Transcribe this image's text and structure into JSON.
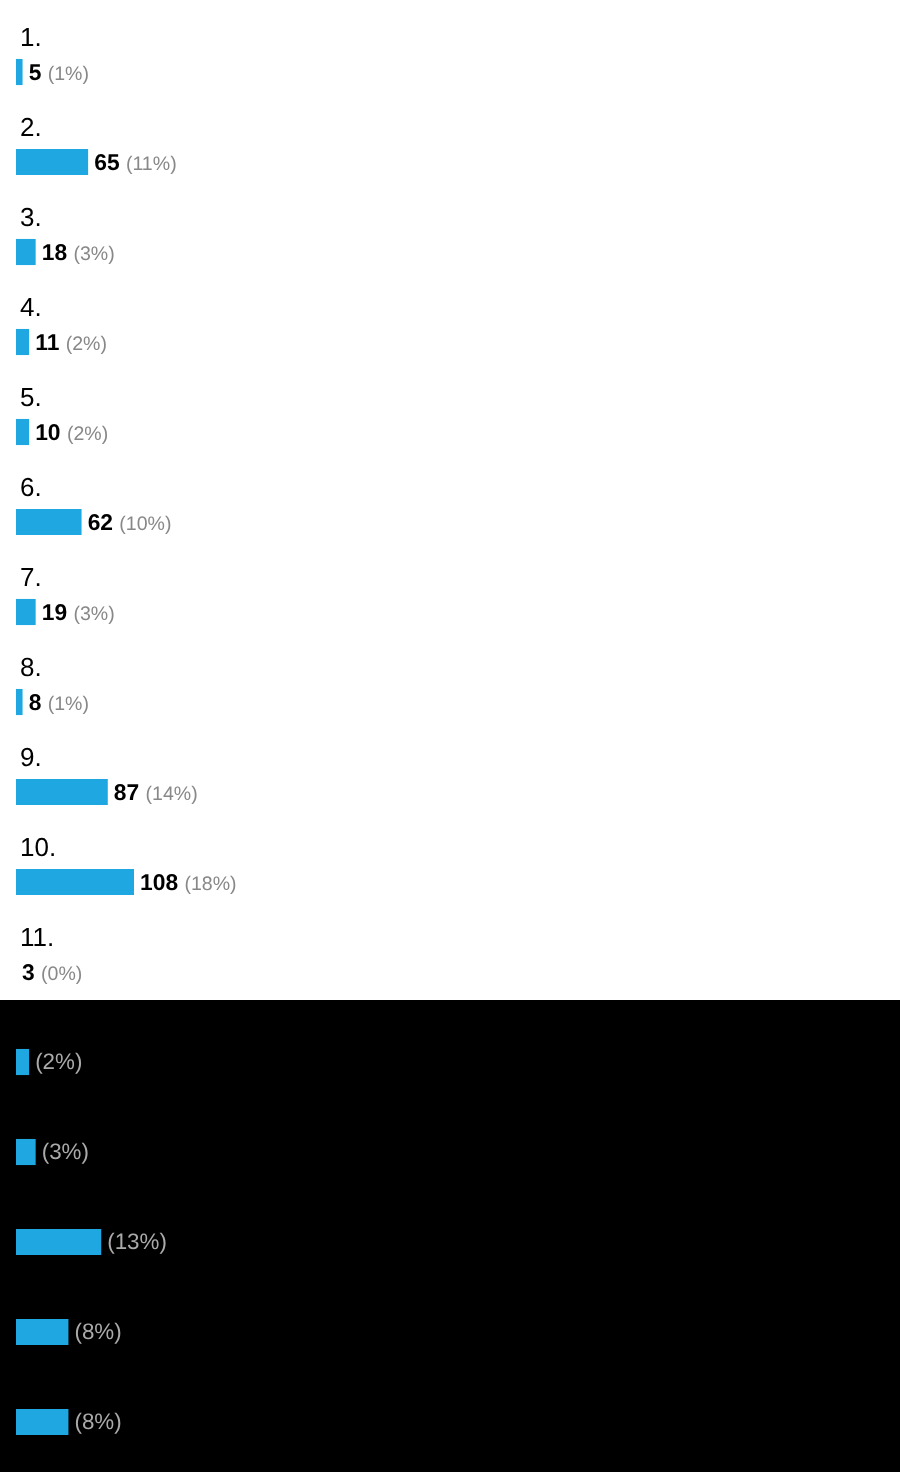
{
  "chart_data": {
    "type": "bar",
    "orientation": "horizontal",
    "categories": [
      "1.",
      "2.",
      "3.",
      "4.",
      "5.",
      "6.",
      "7.",
      "8.",
      "9.",
      "10.",
      "11.",
      null,
      null,
      null,
      null,
      null
    ],
    "values": [
      1,
      11,
      3,
      2,
      2,
      10,
      3,
      1,
      14,
      18,
      0,
      2,
      3,
      13,
      8,
      8
    ],
    "value_labels": [
      "5 (1%)",
      "65 (11%)",
      "18 (3%)",
      "11 (2%)",
      "10 (2%)",
      "62 (10%)",
      "19 (3%)",
      "8 (1%)",
      "87 (14%)",
      "108 (18%)",
      "3 (0%)",
      "(2%)",
      "(3%)",
      "(13%)",
      "(8%)",
      "(8%)"
    ],
    "color": "#1ea7e1"
  }
}
